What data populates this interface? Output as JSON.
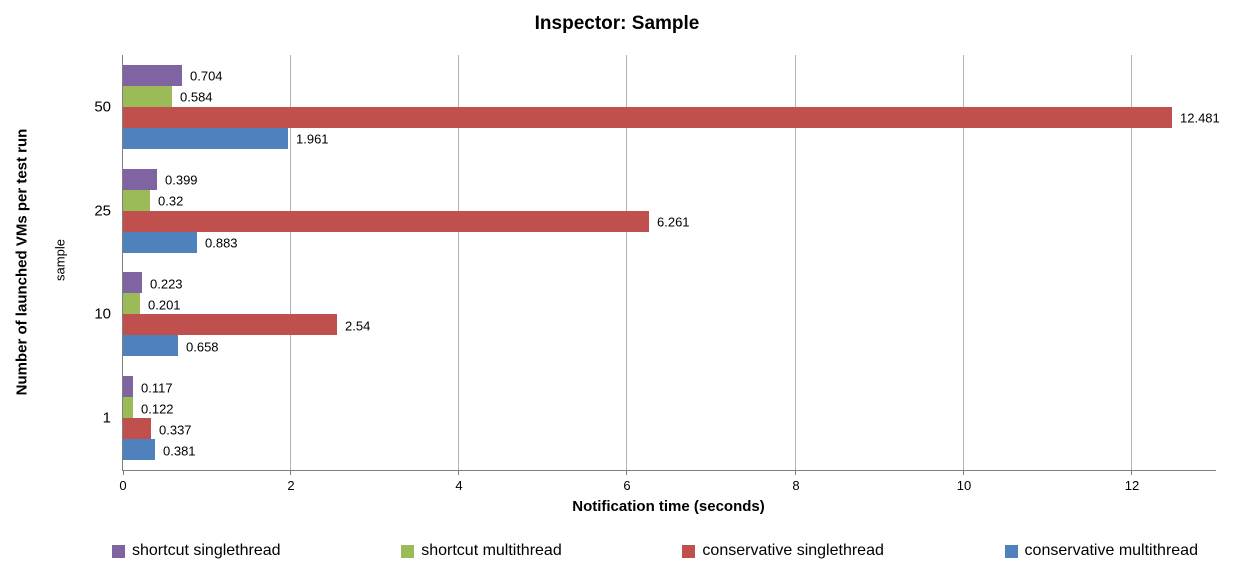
{
  "chart_data": {
    "type": "bar",
    "orientation": "horizontal",
    "title": "Inspector: Sample",
    "xlabel": "Notification time (seconds)",
    "ylabel": "Number of launched VMs per test run",
    "ylabel_secondary": "sample",
    "categories": [
      "50",
      "25",
      "10",
      "1"
    ],
    "series": [
      {
        "name": "shortcut singlethread",
        "color": "#8064A2",
        "values": [
          0.704,
          0.399,
          0.223,
          0.117
        ],
        "labels": [
          "0.704",
          "0.399",
          "0.223",
          "0.117"
        ]
      },
      {
        "name": "shortcut multithread",
        "color": "#9BBB59",
        "values": [
          0.584,
          0.32,
          0.201,
          0.122
        ],
        "labels": [
          "0.584",
          "0.32",
          "0.201",
          "0.122"
        ]
      },
      {
        "name": "conservative singlethread",
        "color": "#C0504D",
        "values": [
          12.481,
          6.261,
          2.54,
          0.337
        ],
        "labels": [
          "12.481",
          "6.261",
          "2.54",
          "0.337"
        ]
      },
      {
        "name": "conservative multithread",
        "color": "#4F81BD",
        "values": [
          1.961,
          0.883,
          0.658,
          0.381
        ],
        "labels": [
          "1.961",
          "0.883",
          "0.658",
          "0.381"
        ]
      }
    ],
    "xlim": [
      0,
      13
    ],
    "xticks": [
      0,
      2,
      4,
      6,
      8,
      10,
      12
    ],
    "grid": true,
    "legend_position": "bottom",
    "colors": {
      "gridline": "#b3b3b3",
      "axis": "#7f7f7f",
      "text": "#000000"
    }
  }
}
